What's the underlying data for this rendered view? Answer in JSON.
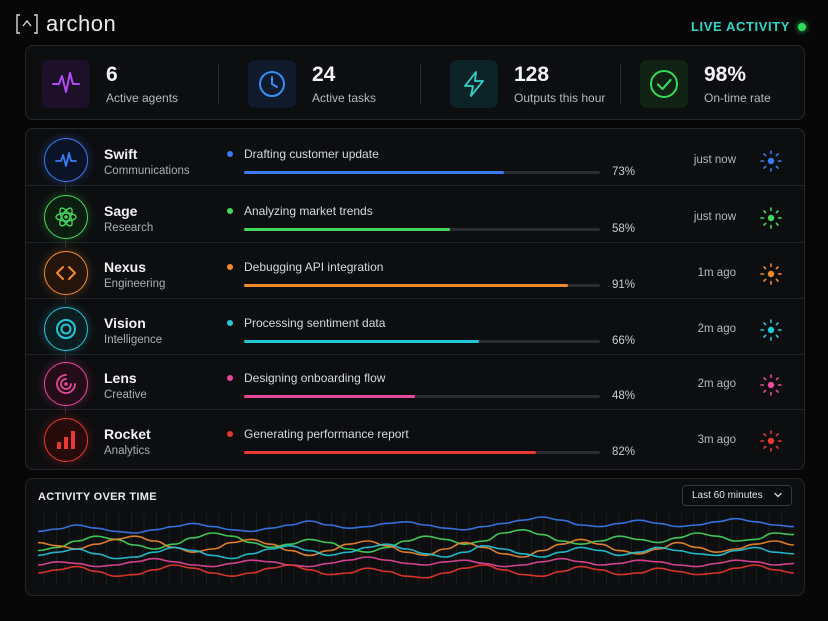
{
  "app": {
    "name": "archon",
    "live_label": "LIVE ACTIVITY"
  },
  "stats": [
    {
      "value": "6",
      "label": "Active agents",
      "icon": "waveform-icon",
      "color": "#b14cf0"
    },
    {
      "value": "24",
      "label": "Active tasks",
      "icon": "clock-icon",
      "color": "#3a8df5"
    },
    {
      "value": "128",
      "label": "Outputs this hour",
      "icon": "lightning-icon",
      "color": "#2fd6c8"
    },
    {
      "value": "98%",
      "label": "On-time rate",
      "icon": "check-circle-icon",
      "color": "#3ad65a"
    }
  ],
  "agents": [
    {
      "name": "Swift",
      "role": "Communications",
      "task": "Drafting customer update",
      "progress": 73,
      "pct_label": "73%",
      "time": "just now",
      "color": "#3a7bf2",
      "icon": "pulse-icon"
    },
    {
      "name": "Sage",
      "role": "Research",
      "task": "Analyzing market trends",
      "progress": 58,
      "pct_label": "58%",
      "time": "just now",
      "color": "#45d85e",
      "icon": "atom-icon"
    },
    {
      "name": "Nexus",
      "role": "Engineering",
      "task": "Debugging API integration",
      "progress": 91,
      "pct_label": "91%",
      "time": "1m ago",
      "color": "#f08a2c",
      "icon": "code-icon"
    },
    {
      "name": "Vision",
      "role": "Intelligence",
      "task": "Processing sentiment data",
      "progress": 66,
      "pct_label": "66%",
      "time": "2m ago",
      "color": "#22c7d8",
      "icon": "target-icon"
    },
    {
      "name": "Lens",
      "role": "Creative",
      "task": "Designing onboarding flow",
      "progress": 48,
      "pct_label": "48%",
      "time": "2m ago",
      "color": "#e8489a",
      "icon": "spiral-icon"
    },
    {
      "name": "Rocket",
      "role": "Analytics",
      "task": "Generating performance report",
      "progress": 82,
      "pct_label": "82%",
      "time": "3m ago",
      "color": "#e8382f",
      "icon": "bar-chart-icon"
    }
  ],
  "activity": {
    "title": "ACTIVITY OVER TIME",
    "range": "Last 60 minutes"
  },
  "chart_data": {
    "type": "line",
    "title": "ACTIVITY OVER TIME",
    "xlabel": "",
    "ylabel": "",
    "grid": false,
    "series": [
      {
        "color": "#3a7bf2",
        "values": [
          0.72,
          0.75,
          0.8,
          0.76,
          0.72,
          0.7,
          0.74,
          0.78,
          0.82,
          0.78,
          0.74,
          0.72,
          0.76,
          0.8,
          0.85,
          0.8,
          0.76,
          0.78,
          0.82,
          0.84,
          0.8,
          0.76,
          0.74,
          0.78,
          0.82,
          0.86,
          0.9,
          0.86,
          0.8,
          0.78,
          0.82,
          0.86,
          0.82,
          0.78,
          0.8,
          0.84,
          0.88,
          0.84,
          0.8,
          0.78
        ]
      },
      {
        "color": "#45d85e",
        "values": [
          0.48,
          0.52,
          0.6,
          0.66,
          0.62,
          0.55,
          0.5,
          0.56,
          0.64,
          0.7,
          0.66,
          0.58,
          0.52,
          0.56,
          0.62,
          0.58,
          0.5,
          0.46,
          0.52,
          0.6,
          0.66,
          0.62,
          0.56,
          0.6,
          0.7,
          0.74,
          0.68,
          0.6,
          0.56,
          0.6,
          0.66,
          0.62,
          0.58,
          0.64,
          0.7,
          0.66,
          0.6,
          0.62,
          0.7,
          0.68
        ]
      },
      {
        "color": "#f08a2c",
        "values": [
          0.58,
          0.54,
          0.5,
          0.56,
          0.62,
          0.66,
          0.6,
          0.52,
          0.46,
          0.5,
          0.58,
          0.62,
          0.56,
          0.48,
          0.42,
          0.48,
          0.56,
          0.6,
          0.54,
          0.46,
          0.42,
          0.5,
          0.58,
          0.52,
          0.44,
          0.4,
          0.48,
          0.56,
          0.62,
          0.56,
          0.48,
          0.44,
          0.5,
          0.58,
          0.52,
          0.46,
          0.5,
          0.56,
          0.6,
          0.55
        ]
      },
      {
        "color": "#22c7d8",
        "values": [
          0.42,
          0.46,
          0.5,
          0.44,
          0.38,
          0.4,
          0.46,
          0.52,
          0.48,
          0.42,
          0.38,
          0.44,
          0.5,
          0.54,
          0.48,
          0.42,
          0.46,
          0.52,
          0.56,
          0.5,
          0.44,
          0.4,
          0.46,
          0.54,
          0.5,
          0.44,
          0.4,
          0.46,
          0.52,
          0.48,
          0.42,
          0.46,
          0.52,
          0.48,
          0.44,
          0.42,
          0.48,
          0.52,
          0.46,
          0.44
        ]
      },
      {
        "color": "#e8489a",
        "values": [
          0.3,
          0.34,
          0.32,
          0.28,
          0.3,
          0.34,
          0.38,
          0.34,
          0.3,
          0.28,
          0.32,
          0.36,
          0.34,
          0.3,
          0.28,
          0.32,
          0.36,
          0.4,
          0.36,
          0.32,
          0.3,
          0.34,
          0.36,
          0.32,
          0.28,
          0.3,
          0.34,
          0.38,
          0.34,
          0.3,
          0.32,
          0.36,
          0.34,
          0.3,
          0.28,
          0.32,
          0.36,
          0.34,
          0.3,
          0.32
        ]
      },
      {
        "color": "#e8382f",
        "values": [
          0.2,
          0.24,
          0.28,
          0.22,
          0.16,
          0.18,
          0.24,
          0.3,
          0.26,
          0.2,
          0.16,
          0.2,
          0.26,
          0.3,
          0.24,
          0.18,
          0.2,
          0.26,
          0.22,
          0.16,
          0.14,
          0.2,
          0.26,
          0.3,
          0.24,
          0.18,
          0.16,
          0.22,
          0.28,
          0.24,
          0.18,
          0.2,
          0.26,
          0.22,
          0.18,
          0.2,
          0.26,
          0.3,
          0.24,
          0.2
        ]
      }
    ]
  }
}
